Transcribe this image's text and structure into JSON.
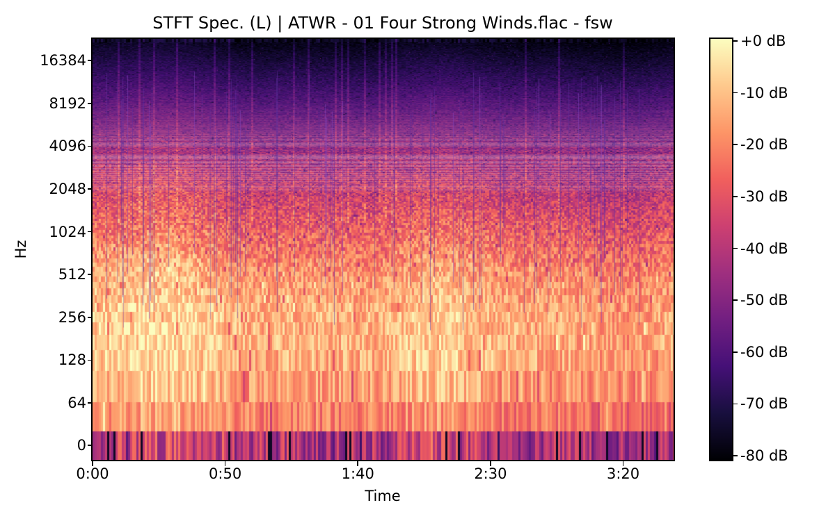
{
  "chart_data": {
    "type": "heatmap",
    "subtype": "stft-spectrogram",
    "title": "STFT Spec. (L) | ATWR - 01 Four Strong Winds.flac - fsw",
    "xlabel": "Time",
    "ylabel": "Hz",
    "x_ticks": [
      {
        "label": "0:00",
        "seconds": 0
      },
      {
        "label": "0:50",
        "seconds": 50
      },
      {
        "label": "1:40",
        "seconds": 100
      },
      {
        "label": "2:30",
        "seconds": 150
      },
      {
        "label": "3:20",
        "seconds": 200
      }
    ],
    "duration_seconds": 219,
    "y_ticks_hz": [
      16384,
      8192,
      4096,
      2048,
      1024,
      512,
      256,
      128,
      64,
      0
    ],
    "y_scale": "symlog-base2",
    "colorbar": {
      "tick_labels": [
        "+0 dB",
        "-10 dB",
        "-20 dB",
        "-30 dB",
        "-40 dB",
        "-50 dB",
        "-60 dB",
        "-70 dB",
        "-80 dB"
      ],
      "vmax_db": 0,
      "vmin_db": -80
    },
    "colormap": {
      "name": "magma",
      "stops": [
        "#000004",
        "#180f3e",
        "#451077",
        "#721f81",
        "#9f2f7f",
        "#cd4071",
        "#f1605d",
        "#fd9567",
        "#fec98d",
        "#fcfdbf"
      ]
    },
    "spectrogram_model": {
      "fft_bin_hz": 43,
      "nyquist_hz": 22050,
      "freq_db_profile": [
        [
          0,
          -40
        ],
        [
          43,
          -20
        ],
        [
          86,
          -14
        ],
        [
          130,
          -11
        ],
        [
          260,
          -11
        ],
        [
          520,
          -16
        ],
        [
          1000,
          -25
        ],
        [
          2000,
          -35
        ],
        [
          4000,
          -46
        ],
        [
          8000,
          -58
        ],
        [
          16000,
          -70
        ],
        [
          22050,
          -76
        ]
      ],
      "noise_db_low": 9,
      "noise_db_mid": 10,
      "noise_db_high": 6,
      "dc_noise_db": 14,
      "transient_column_probability": 0.1,
      "seed": 20240607
    }
  }
}
